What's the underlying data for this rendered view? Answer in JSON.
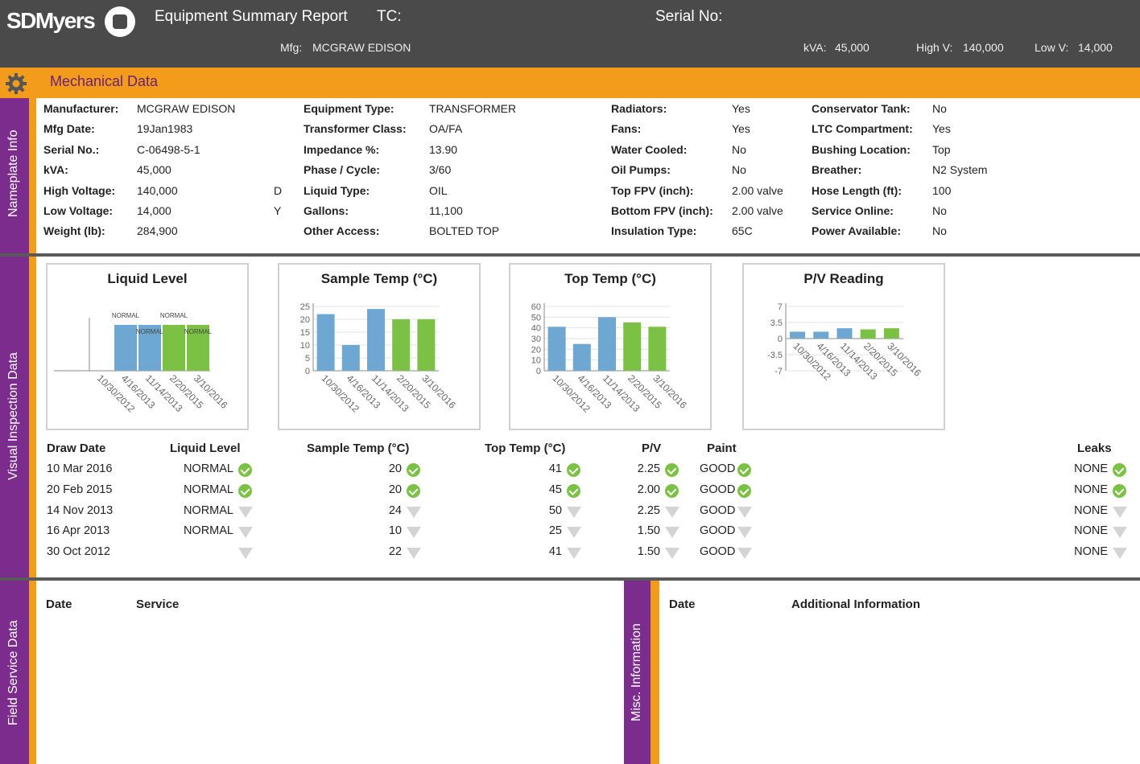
{
  "header": {
    "logo_text": "SDMyers",
    "report_title": "Equipment Summary Report",
    "tc_label": "TC:",
    "serial_label": "Serial No:",
    "mfg_label": "Mfg:",
    "mfg_value": "MCGRAW EDISON",
    "kva_label": "kVA:",
    "kva_value": "45,000",
    "highv_label": "High V:",
    "highv_value": "140,000",
    "lowv_label": "Low V:",
    "lowv_value": "14,000"
  },
  "section_title": "Mechanical Data",
  "rails": {
    "nameplate": "Nameplate Info",
    "visual": "Visual Inspection Data",
    "field": "Field Service Data",
    "misc": "Misc. Information"
  },
  "nameplate": {
    "col1": [
      {
        "k": "Manufacturer:",
        "v": "MCGRAW EDISON",
        "x": ""
      },
      {
        "k": "Mfg Date:",
        "v": "19Jan1983",
        "x": ""
      },
      {
        "k": "Serial No.:",
        "v": "C-06498-5-1",
        "x": ""
      },
      {
        "k": "kVA:",
        "v": "45,000",
        "x": ""
      },
      {
        "k": "High Voltage:",
        "v": "140,000",
        "x": "D"
      },
      {
        "k": "Low Voltage:",
        "v": "14,000",
        "x": "Y"
      },
      {
        "k": "Weight (lb):",
        "v": "284,900",
        "x": ""
      }
    ],
    "col2": [
      {
        "k": "Equipment Type:",
        "v": "TRANSFORMER"
      },
      {
        "k": "Transformer Class:",
        "v": "OA/FA"
      },
      {
        "k": "Impedance %:",
        "v": "13.90"
      },
      {
        "k": "Phase / Cycle:",
        "v": "3/60"
      },
      {
        "k": "Liquid Type:",
        "v": "OIL"
      },
      {
        "k": "Gallons:",
        "v": "11,100"
      },
      {
        "k": "Other Access:",
        "v": "BOLTED TOP"
      }
    ],
    "col3": [
      {
        "k": "Radiators:",
        "v": "Yes"
      },
      {
        "k": "Fans:",
        "v": "Yes"
      },
      {
        "k": "Water Cooled:",
        "v": "No"
      },
      {
        "k": "Oil Pumps:",
        "v": "No"
      },
      {
        "k": "Top FPV (inch):",
        "v": "2.00 valve"
      },
      {
        "k": "Bottom FPV (inch):",
        "v": "2.00 valve"
      },
      {
        "k": "Insulation Type:",
        "v": "65C"
      }
    ],
    "col4": [
      {
        "k": "Conservator Tank:",
        "v": "No"
      },
      {
        "k": "LTC Compartment:",
        "v": "Yes"
      },
      {
        "k": "Bushing Location:",
        "v": "Top"
      },
      {
        "k": "Breather:",
        "v": "N2 System"
      },
      {
        "k": "Hose Length (ft):",
        "v": "100"
      },
      {
        "k": "Service Online:",
        "v": "No"
      },
      {
        "k": "Power Available:",
        "v": "No"
      }
    ]
  },
  "chart_data": [
    {
      "type": "bar",
      "title": "Liquid Level",
      "categories": [
        "10/30/2012",
        "4/16/2013",
        "11/14/2013",
        "2/20/2015",
        "3/10/2016"
      ],
      "values": [
        null,
        1,
        1,
        1,
        1
      ],
      "labels": [
        "",
        "NORMAL",
        "NORMAL",
        "NORMAL",
        "NORMAL"
      ],
      "colors": [
        "#6ea8d2",
        "#6ea8d2",
        "#6ea8d2",
        "#7bc143",
        "#7bc143"
      ]
    },
    {
      "type": "bar",
      "title": "Sample Temp (°C)",
      "categories": [
        "10/30/2012",
        "4/16/2013",
        "11/14/2013",
        "2/20/2015",
        "3/10/2016"
      ],
      "values": [
        22,
        10,
        24,
        20,
        20
      ],
      "yticks": [
        0,
        5,
        10,
        15,
        20,
        25
      ],
      "ylim": [
        0,
        25
      ],
      "colors": [
        "#6ea8d2",
        "#6ea8d2",
        "#6ea8d2",
        "#7bc143",
        "#7bc143"
      ]
    },
    {
      "type": "bar",
      "title": "Top Temp (°C)",
      "categories": [
        "10/30/2012",
        "4/16/2013",
        "11/14/2013",
        "2/20/2015",
        "3/10/2016"
      ],
      "values": [
        41,
        25,
        50,
        45,
        41
      ],
      "yticks": [
        0,
        10,
        20,
        30,
        40,
        50,
        60
      ],
      "ylim": [
        0,
        60
      ],
      "colors": [
        "#6ea8d2",
        "#6ea8d2",
        "#6ea8d2",
        "#7bc143",
        "#7bc143"
      ]
    },
    {
      "type": "bar",
      "title": "P/V Reading",
      "categories": [
        "10/30/2012",
        "4/16/2013",
        "11/14/2013",
        "2/20/2015",
        "3/10/2016"
      ],
      "values": [
        1.5,
        1.5,
        2.25,
        2.0,
        2.25
      ],
      "yticks": [
        -7,
        -3.5,
        0,
        3.5,
        7
      ],
      "ytick_labels": [
        "-7",
        "-3.5",
        "0",
        "3.5",
        "7"
      ],
      "ylim": [
        -7,
        7
      ],
      "colors": [
        "#6ea8d2",
        "#6ea8d2",
        "#6ea8d2",
        "#7bc143",
        "#7bc143"
      ]
    }
  ],
  "inspection": {
    "headers": {
      "date": "Draw Date",
      "liquid": "Liquid Level",
      "sample": "Sample Temp (°C)",
      "top": "Top Temp (°C)",
      "pv": "P/V",
      "paint": "Paint",
      "leaks": "Leaks"
    },
    "rows": [
      {
        "date": "10 Mar 2016",
        "liquid": "NORMAL",
        "liquid_ok": true,
        "sample": "20",
        "sample_ok": true,
        "top": "41",
        "top_ok": true,
        "pv": "2.25",
        "pv_ok": true,
        "paint": "GOOD",
        "paint_ok": true,
        "leaks": "NONE",
        "leaks_ok": true
      },
      {
        "date": "20 Feb 2015",
        "liquid": "NORMAL",
        "liquid_ok": true,
        "sample": "20",
        "sample_ok": true,
        "top": "45",
        "top_ok": true,
        "pv": "2.00",
        "pv_ok": true,
        "paint": "GOOD",
        "paint_ok": true,
        "leaks": "NONE",
        "leaks_ok": true
      },
      {
        "date": "14 Nov 2013",
        "liquid": "NORMAL",
        "liquid_ok": false,
        "sample": "24",
        "sample_ok": false,
        "top": "50",
        "top_ok": false,
        "pv": "2.25",
        "pv_ok": false,
        "paint": "GOOD",
        "paint_ok": false,
        "leaks": "NONE",
        "leaks_ok": false
      },
      {
        "date": "16 Apr 2013",
        "liquid": "NORMAL",
        "liquid_ok": false,
        "sample": "10",
        "sample_ok": false,
        "top": "25",
        "top_ok": false,
        "pv": "1.50",
        "pv_ok": false,
        "paint": "GOOD",
        "paint_ok": false,
        "leaks": "NONE",
        "leaks_ok": false
      },
      {
        "date": "30 Oct 2012",
        "liquid": "",
        "liquid_ok": false,
        "sample": "22",
        "sample_ok": false,
        "top": "41",
        "top_ok": false,
        "pv": "1.50",
        "pv_ok": false,
        "paint": "GOOD",
        "paint_ok": false,
        "leaks": "NONE",
        "leaks_ok": false
      }
    ]
  },
  "field_service": {
    "date_header": "Date",
    "service_header": "Service"
  },
  "misc": {
    "date_header": "Date",
    "info_header": "Additional Information"
  },
  "colors": {
    "header_bg": "#4a4a4a",
    "accent_orange": "#f39c1b",
    "accent_purple": "#7b2c8c",
    "bar_blue": "#6ea8d2",
    "bar_green": "#7bc143"
  },
  "icons": {
    "section": "gear-icon",
    "ok": "check-circle-icon",
    "pending": "down-triangle-icon"
  }
}
